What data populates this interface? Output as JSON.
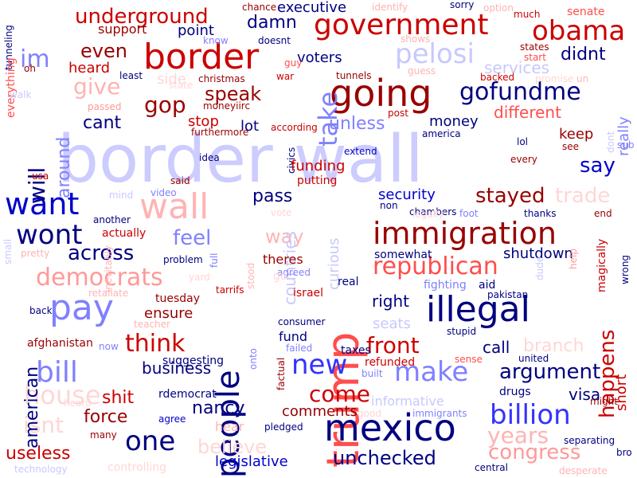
{
  "colors": {
    "background": "#ffffff",
    "palette": [
      "#0000cc",
      "#cc0000",
      "#990000",
      "#000080",
      "#ff4d4d",
      "#8080ff",
      "#ffb3b3",
      "#c8c8ff"
    ]
  },
  "words": [
    {
      "text": "border wall",
      "color": "#ccccff"
    },
    {
      "text": "trump",
      "color": "#ff4d4d"
    },
    {
      "text": "going",
      "color": "#990000"
    },
    {
      "text": "border",
      "color": "#cc0000"
    },
    {
      "text": "mexico",
      "color": "#000080"
    },
    {
      "text": "illegal",
      "color": "#000080"
    },
    {
      "text": "immigration",
      "color": "#990000"
    },
    {
      "text": "people",
      "color": "#000080"
    },
    {
      "text": "government",
      "color": "#cc0000"
    },
    {
      "text": "pay",
      "color": "#8080ff"
    },
    {
      "text": "obama",
      "color": "#cc0000"
    },
    {
      "text": "pelosi",
      "color": "#c8c8ff"
    },
    {
      "text": "wall",
      "color": "#ffb3b3"
    },
    {
      "text": "billion",
      "color": "#3333ff"
    },
    {
      "text": "gofundme",
      "color": "#000080"
    },
    {
      "text": "want",
      "color": "#0000cc"
    },
    {
      "text": "wont",
      "color": "#000080"
    },
    {
      "text": "republican",
      "color": "#ff4d4d"
    },
    {
      "text": "make",
      "color": "#8080ff"
    },
    {
      "text": "democrats",
      "color": "#ff9999"
    },
    {
      "text": "bill",
      "color": "#8080ff"
    },
    {
      "text": "one",
      "color": "#000080"
    },
    {
      "text": "new",
      "color": "#3333ff"
    },
    {
      "text": "underground",
      "color": "#cc0000"
    },
    {
      "text": "think",
      "color": "#cc0000"
    },
    {
      "text": "front",
      "color": "#cc0000"
    },
    {
      "text": "come",
      "color": "#cc0000"
    },
    {
      "text": "argument",
      "color": "#000080"
    },
    {
      "text": "years",
      "color": "#ffb3b3"
    },
    {
      "text": "congress",
      "color": "#ff9999"
    },
    {
      "text": "unchecked",
      "color": "#000080"
    },
    {
      "text": "house",
      "color": "#ffd6d6"
    },
    {
      "text": "isnt",
      "color": "#ffd6d6"
    },
    {
      "text": "take",
      "color": "#8080ff"
    },
    {
      "text": "gop",
      "color": "#990000"
    },
    {
      "text": "give",
      "color": "#ffb3b3"
    },
    {
      "text": "speak",
      "color": "#990000"
    },
    {
      "text": "stayed",
      "color": "#990000"
    },
    {
      "text": "trade",
      "color": "#ffd6d6"
    },
    {
      "text": "say",
      "color": "#0000cc"
    },
    {
      "text": "happens",
      "color": "#cc0000"
    },
    {
      "text": "im",
      "color": "#8080ff"
    },
    {
      "text": "even",
      "color": "#990000"
    },
    {
      "text": "will",
      "color": "#000080"
    },
    {
      "text": "around",
      "color": "#8080ff"
    },
    {
      "text": "cant",
      "color": "#000080"
    },
    {
      "text": "unless",
      "color": "#8080ff"
    },
    {
      "text": "different",
      "color": "#ff4d4d"
    },
    {
      "text": "didnt",
      "color": "#000080"
    },
    {
      "text": "damn",
      "color": "#000080"
    },
    {
      "text": "voters",
      "color": "#000080"
    },
    {
      "text": "services",
      "color": "#c8c8ff"
    },
    {
      "text": "keep",
      "color": "#990000"
    },
    {
      "text": "really",
      "color": "#8080ff"
    },
    {
      "text": "money",
      "color": "#000080"
    },
    {
      "text": "feel",
      "color": "#8080ff"
    },
    {
      "text": "across",
      "color": "#000080"
    },
    {
      "text": "pass",
      "color": "#000080"
    },
    {
      "text": "way",
      "color": "#ffb3b3"
    },
    {
      "text": "countries",
      "color": "#c8c8ff"
    },
    {
      "text": "curious",
      "color": "#c8c8ff"
    },
    {
      "text": "security",
      "color": "#0000cc"
    },
    {
      "text": "shutdown",
      "color": "#000080"
    },
    {
      "text": "american",
      "color": "#000080"
    },
    {
      "text": "shit",
      "color": "#cc0000"
    },
    {
      "text": "force",
      "color": "#990000"
    },
    {
      "text": "nancy",
      "color": "#000080"
    },
    {
      "text": "business",
      "color": "#000080"
    },
    {
      "text": "call",
      "color": "#000080"
    },
    {
      "text": "branch",
      "color": "#ffd6d6"
    },
    {
      "text": "visa",
      "color": "#000080"
    },
    {
      "text": "believe",
      "color": "#ffd6d6"
    },
    {
      "text": "useless",
      "color": "#cc0000"
    },
    {
      "text": "legislative",
      "color": "#0000cc"
    },
    {
      "text": "comments",
      "color": "#990000"
    },
    {
      "text": "right",
      "color": "#000080"
    },
    {
      "text": "seats",
      "color": "#c8c8ff"
    },
    {
      "text": "ensure",
      "color": "#990000"
    },
    {
      "text": "short",
      "color": "#cc0000"
    },
    {
      "text": "executive",
      "color": "#000080"
    },
    {
      "text": "point",
      "color": "#000080"
    },
    {
      "text": "support",
      "color": "#990000"
    },
    {
      "text": "heard",
      "color": "#cc0000"
    },
    {
      "text": "side",
      "color": "#ffd6d6"
    },
    {
      "text": "stop",
      "color": "#cc0000"
    },
    {
      "text": "lot",
      "color": "#000080"
    },
    {
      "text": "tunneling",
      "color": "#000080"
    },
    {
      "text": "chance",
      "color": "#990000"
    },
    {
      "text": "identify",
      "color": "#ffb3b3"
    },
    {
      "text": "sorry",
      "color": "#000080"
    },
    {
      "text": "option",
      "color": "#ffb3b3"
    },
    {
      "text": "much",
      "color": "#cc0000"
    },
    {
      "text": "senate",
      "color": "#ff4d4d"
    },
    {
      "text": "know",
      "color": "#8080ff"
    },
    {
      "text": "doesnt",
      "color": "#000080"
    },
    {
      "text": "shows",
      "color": "#ffb3b3"
    },
    {
      "text": "states",
      "color": "#990000"
    },
    {
      "text": "start",
      "color": "#ff4d4d"
    },
    {
      "text": "guy",
      "color": "#ff4d4d"
    },
    {
      "text": "guess",
      "color": "#ffb3b3"
    },
    {
      "text": "oh",
      "color": "#990000"
    },
    {
      "text": "least",
      "color": "#000080"
    },
    {
      "text": "christmas",
      "color": "#990000"
    },
    {
      "text": "war",
      "color": "#cc0000"
    },
    {
      "text": "tunnels",
      "color": "#990000"
    },
    {
      "text": "backed",
      "color": "#cc0000"
    },
    {
      "text": "promise",
      "color": "#ffd6d6"
    },
    {
      "text": "un",
      "color": "#ffb3b3"
    },
    {
      "text": "passed",
      "color": "#ff9999"
    },
    {
      "text": "moneyiirc",
      "color": "#990000"
    },
    {
      "text": "post",
      "color": "#cc0000"
    },
    {
      "text": "according",
      "color": "#cc0000"
    },
    {
      "text": "america",
      "color": "#000080"
    },
    {
      "text": "lol",
      "color": "#000080"
    },
    {
      "text": "dont",
      "color": "#c8c8ff"
    },
    {
      "text": "see",
      "color": "#990000"
    },
    {
      "text": "sub",
      "color": "#8080ff"
    },
    {
      "text": "furthermore",
      "color": "#990000"
    },
    {
      "text": "extend",
      "color": "#0000cc"
    },
    {
      "text": "every",
      "color": "#990000"
    },
    {
      "text": "idea",
      "color": "#000080"
    },
    {
      "text": "civics",
      "color": "#000080"
    },
    {
      "text": "funding",
      "color": "#cc0000"
    },
    {
      "text": "putting",
      "color": "#cc0000"
    },
    {
      "text": "said",
      "color": "#990000"
    },
    {
      "text": "video",
      "color": "#8080ff"
    },
    {
      "text": "mind",
      "color": "#c8c8ff"
    },
    {
      "text": "usa",
      "color": "#cc0000"
    },
    {
      "text": "another",
      "color": "#000080"
    },
    {
      "text": "actually",
      "color": "#cc0000"
    },
    {
      "text": "non",
      "color": "#000080"
    },
    {
      "text": "chambers",
      "color": "#000080"
    },
    {
      "text": "legally",
      "color": "#ffd6d6"
    },
    {
      "text": "foot",
      "color": "#8080ff"
    },
    {
      "text": "thanks",
      "color": "#000080"
    },
    {
      "text": "end",
      "color": "#990000"
    },
    {
      "text": "vote",
      "color": "#ffd6d6"
    },
    {
      "text": "small",
      "color": "#c8c8ff"
    },
    {
      "text": "pretty",
      "color": "#ffb3b3"
    },
    {
      "text": "inevitably",
      "color": "#ffb3b3"
    },
    {
      "text": "problem",
      "color": "#000080"
    },
    {
      "text": "full",
      "color": "#8080ff"
    },
    {
      "text": "theres",
      "color": "#990000"
    },
    {
      "text": "somewhat",
      "color": "#000080"
    },
    {
      "text": "help",
      "color": "#ff9999"
    },
    {
      "text": "magically",
      "color": "#cc0000"
    },
    {
      "text": "wrong",
      "color": "#000080"
    },
    {
      "text": "yard",
      "color": "#ffd6d6"
    },
    {
      "text": "tarrifs",
      "color": "#cc0000"
    },
    {
      "text": "stood",
      "color": "#ffb3b3"
    },
    {
      "text": "agreed",
      "color": "#8080ff"
    },
    {
      "text": "real",
      "color": "#000080"
    },
    {
      "text": "fighting",
      "color": "#8080ff"
    },
    {
      "text": "aid",
      "color": "#000080"
    },
    {
      "text": "dude",
      "color": "#c8c8ff"
    },
    {
      "text": "pakistan",
      "color": "#000080"
    },
    {
      "text": "retaliate",
      "color": "#ffb3b3"
    },
    {
      "text": "tuesday",
      "color": "#990000"
    },
    {
      "text": "back",
      "color": "#000080"
    },
    {
      "text": "teacher",
      "color": "#ffb3b3"
    },
    {
      "text": "israel",
      "color": "#cc0000"
    },
    {
      "text": "consumer",
      "color": "#000080"
    },
    {
      "text": "stupid",
      "color": "#000080"
    },
    {
      "text": "fund",
      "color": "#000080"
    },
    {
      "text": "afghanistan",
      "color": "#990000"
    },
    {
      "text": "now",
      "color": "#8080ff"
    },
    {
      "text": "onto",
      "color": "#8080ff"
    },
    {
      "text": "failed",
      "color": "#8080ff"
    },
    {
      "text": "taxes",
      "color": "#000080"
    },
    {
      "text": "refunded",
      "color": "#cc0000"
    },
    {
      "text": "sense",
      "color": "#ff4d4d"
    },
    {
      "text": "united",
      "color": "#000080"
    },
    {
      "text": "suggesting",
      "color": "#000080"
    },
    {
      "text": "factual",
      "color": "#990000"
    },
    {
      "text": "built",
      "color": "#8080ff"
    },
    {
      "text": "drugs",
      "color": "#000080"
    },
    {
      "text": "rdemocrat",
      "color": "#000080"
    },
    {
      "text": "informative",
      "color": "#c8c8ff"
    },
    {
      "text": "might",
      "color": "#990000"
    },
    {
      "text": "agree",
      "color": "#0000cc"
    },
    {
      "text": "hear",
      "color": "#ffb3b3"
    },
    {
      "text": "good",
      "color": "#ffd6d6"
    },
    {
      "text": "immigrants",
      "color": "#8080ff"
    },
    {
      "text": "many",
      "color": "#990000"
    },
    {
      "text": "pledged",
      "color": "#000080"
    },
    {
      "text": "separating",
      "color": "#000080"
    },
    {
      "text": "bro",
      "color": "#000080"
    },
    {
      "text": "controlling",
      "color": "#ffd6d6"
    },
    {
      "text": "technology",
      "color": "#c8c8ff"
    },
    {
      "text": "central",
      "color": "#000080"
    },
    {
      "text": "desperate",
      "color": "#ffb3b3"
    },
    {
      "text": "everything",
      "color": "#ff4d4d"
    },
    {
      "text": "walk",
      "color": "#c8c8ff"
    },
    {
      "text": "state",
      "color": "#ffd6d6"
    },
    {
      "text": "heard",
      "color": "#ffd6d6"
    },
    {
      "text": "go",
      "color": "#ffd6d6"
    }
  ]
}
